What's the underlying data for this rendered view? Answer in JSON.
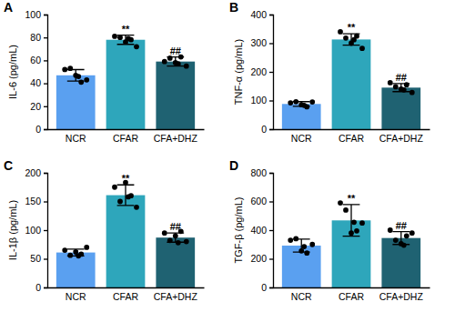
{
  "chart_data": [
    {
      "type": "bar",
      "title": "A",
      "y_label": "IL-6 (pg/mL)",
      "categories": [
        "NCR",
        "CFAR",
        "CFA+DHZ"
      ],
      "values": [
        47,
        78,
        59
      ],
      "errors": [
        5,
        4,
        4
      ],
      "points": [
        [
          52,
          53,
          47,
          41,
          43,
          46
        ],
        [
          81,
          80,
          76,
          78,
          72,
          79
        ],
        [
          59,
          62,
          58,
          63,
          55,
          57
        ]
      ],
      "colors": [
        "#5aa0f0",
        "#2ea6bb",
        "#1f6272"
      ],
      "annotations": [
        {
          "category": "CFAR",
          "text": "**"
        },
        {
          "category": "CFA+DHZ",
          "text": "##"
        }
      ],
      "ylim": [
        0,
        100
      ],
      "yticks": [
        0,
        20,
        40,
        60,
        80,
        100
      ],
      "marker": "circle",
      "grid": false
    },
    {
      "type": "bar",
      "title": "B",
      "y_label": "TNF-α (pg/mL)",
      "categories": [
        "NCR",
        "CFAR",
        "CFA+DHZ"
      ],
      "values": [
        88,
        313,
        145
      ],
      "errors": [
        8,
        20,
        14
      ],
      "points": [
        [
          92,
          96,
          85,
          78,
          95,
          83
        ],
        [
          340,
          318,
          300,
          325,
          282,
          312
        ],
        [
          162,
          148,
          140,
          155,
          128,
          137
        ]
      ],
      "colors": [
        "#5aa0f0",
        "#2ea6bb",
        "#1f6272"
      ],
      "annotations": [
        {
          "category": "CFAR",
          "text": "**"
        },
        {
          "category": "CFA+DHZ",
          "text": "##"
        }
      ],
      "ylim": [
        0,
        400
      ],
      "yticks": [
        0,
        100,
        200,
        300,
        400
      ],
      "marker": "circle",
      "grid": false
    },
    {
      "type": "bar",
      "title": "C",
      "y_label": "IL-1β (pg/mL)",
      "categories": [
        "NCR",
        "CFAR",
        "CFA+DHZ"
      ],
      "values": [
        61,
        161,
        87
      ],
      "errors": [
        6,
        18,
        8
      ],
      "points": [
        [
          65,
          56,
          62,
          58,
          70,
          55
        ],
        [
          175,
          150,
          183,
          160,
          140,
          158
        ],
        [
          95,
          82,
          90,
          98,
          80,
          78
        ]
      ],
      "colors": [
        "#5aa0f0",
        "#2ea6bb",
        "#1f6272"
      ],
      "annotations": [
        {
          "category": "CFAR",
          "text": "**"
        },
        {
          "category": "CFA+DHZ",
          "text": "##"
        }
      ],
      "ylim": [
        0,
        200
      ],
      "yticks": [
        0,
        50,
        100,
        150,
        200
      ],
      "marker": "circle",
      "grid": false
    },
    {
      "type": "bar",
      "title": "D",
      "y_label": "TGF-β (pg/mL)",
      "categories": [
        "NCR",
        "CFAR",
        "CFA+DHZ"
      ],
      "values": [
        292,
        468,
        345
      ],
      "errors": [
        45,
        110,
        45
      ],
      "points": [
        [
          330,
          340,
          255,
          240,
          300,
          285
        ],
        [
          590,
          540,
          380,
          395,
          450,
          455
        ],
        [
          400,
          330,
          305,
          360,
          380,
          295
        ]
      ],
      "colors": [
        "#5aa0f0",
        "#2ea6bb",
        "#1f6272"
      ],
      "annotations": [
        {
          "category": "CFAR",
          "text": "**"
        },
        {
          "category": "CFA+DHZ",
          "text": "##"
        }
      ],
      "ylim": [
        0,
        800
      ],
      "yticks": [
        0,
        200,
        400,
        600,
        800
      ],
      "marker": "circle",
      "grid": false
    }
  ]
}
